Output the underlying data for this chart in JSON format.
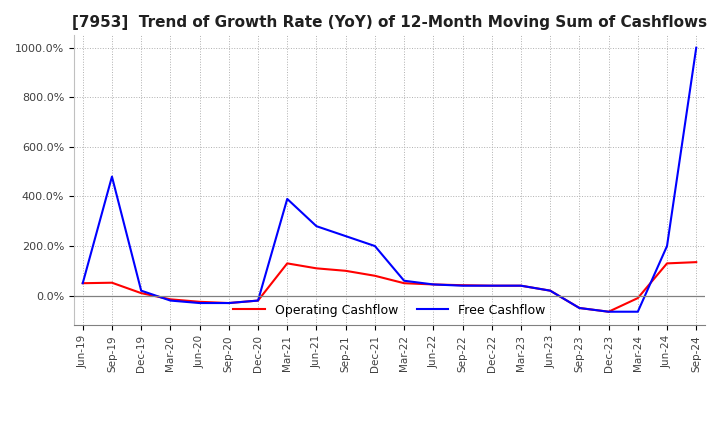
{
  "title": "[7953]  Trend of Growth Rate (YoY) of 12-Month Moving Sum of Cashflows",
  "title_fontsize": 11,
  "ylim": [
    -120,
    1050
  ],
  "yticks": [
    0,
    200,
    400,
    600,
    800,
    1000
  ],
  "ytick_labels": [
    "0.0%",
    "200.0%",
    "400.0%",
    "600.0%",
    "800.0%",
    "1000.0%"
  ],
  "background_color": "#ffffff",
  "grid_color": "#b0b0b0",
  "operating_color": "#ff0000",
  "free_color": "#0000ff",
  "x_labels": [
    "Jun-19",
    "Sep-19",
    "Dec-19",
    "Mar-20",
    "Jun-20",
    "Sep-20",
    "Dec-20",
    "Mar-21",
    "Jun-21",
    "Sep-21",
    "Dec-21",
    "Mar-22",
    "Jun-22",
    "Sep-22",
    "Dec-22",
    "Mar-23",
    "Jun-23",
    "Sep-23",
    "Dec-23",
    "Mar-24",
    "Jun-24",
    "Sep-24"
  ],
  "operating_cashflow": [
    50,
    52,
    10,
    -15,
    -25,
    -30,
    -20,
    130,
    110,
    100,
    80,
    50,
    45,
    42,
    40,
    40,
    20,
    -50,
    -65,
    -10,
    130,
    135
  ],
  "free_cashflow": [
    50,
    480,
    20,
    -20,
    -30,
    -30,
    -20,
    390,
    280,
    240,
    200,
    60,
    45,
    40,
    40,
    40,
    20,
    -50,
    -65,
    -65,
    200,
    1000
  ]
}
